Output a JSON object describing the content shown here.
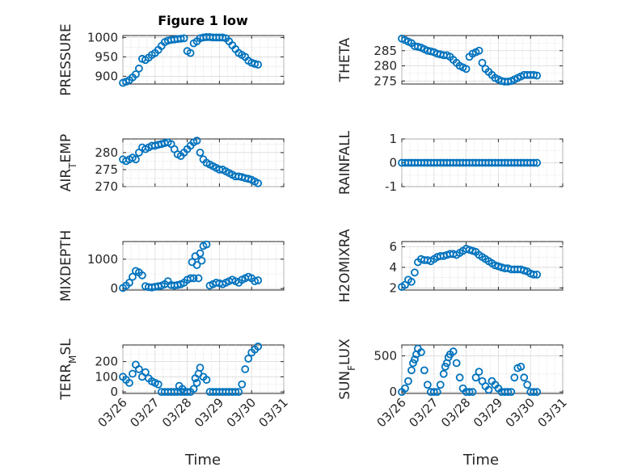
{
  "figure": {
    "title": "Figure 1 low",
    "xlabel": "Time"
  },
  "chart_data": [
    {
      "type": "scatter",
      "ylabel": "PRESSURE",
      "yticks": [
        "900",
        "950",
        "1000"
      ],
      "ylim": [
        880,
        1005
      ],
      "xlim": [
        0,
        5
      ],
      "xtick_labels": [
        "",
        "",
        "",
        "",
        "",
        ""
      ],
      "marker_color": "#0072BD",
      "series": [
        {
          "x": [
            0.0,
            0.1,
            0.2,
            0.3,
            0.4,
            0.5,
            0.6,
            0.7,
            0.8,
            0.9,
            1.0,
            1.1,
            1.2,
            1.3,
            1.4,
            1.5,
            1.6,
            1.7,
            1.8,
            1.9,
            2.0,
            2.1,
            2.2,
            2.3,
            2.4,
            2.5,
            2.6,
            2.7,
            2.8,
            2.9,
            3.0,
            3.1,
            3.2,
            3.3,
            3.4,
            3.5,
            3.6,
            3.7,
            3.8,
            3.9,
            4.0,
            4.1,
            4.2
          ],
          "y": [
            883,
            886,
            890,
            897,
            905,
            920,
            945,
            942,
            948,
            955,
            960,
            968,
            978,
            988,
            992,
            994,
            995,
            996,
            997,
            998,
            965,
            960,
            985,
            990,
            998,
            1000,
            1001,
            1001,
            1000,
            1000,
            1000,
            1000,
            998,
            990,
            980,
            970,
            960,
            955,
            950,
            940,
            935,
            932,
            930
          ]
        }
      ]
    },
    {
      "type": "scatter",
      "ylabel": "THETA",
      "yticks": [
        "275",
        "280",
        "285"
      ],
      "ylim": [
        274,
        290
      ],
      "xlim": [
        0,
        5
      ],
      "xtick_labels": [
        "",
        "",
        "",
        "",
        "",
        ""
      ],
      "marker_color": "#0072BD",
      "series": [
        {
          "x": [
            0.0,
            0.1,
            0.2,
            0.3,
            0.4,
            0.5,
            0.6,
            0.7,
            0.8,
            0.9,
            1.0,
            1.1,
            1.2,
            1.3,
            1.4,
            1.5,
            1.6,
            1.7,
            1.8,
            1.9,
            2.0,
            2.1,
            2.2,
            2.3,
            2.4,
            2.5,
            2.6,
            2.7,
            2.8,
            2.9,
            3.0,
            3.1,
            3.2,
            3.3,
            3.4,
            3.5,
            3.6,
            3.7,
            3.8,
            3.9,
            4.0,
            4.1,
            4.2
          ],
          "y": [
            289,
            288.5,
            288,
            287.5,
            286.5,
            286.3,
            286,
            285.5,
            285,
            284.8,
            284.5,
            284,
            283.8,
            283.5,
            283.5,
            283,
            282,
            281,
            280,
            279.5,
            279,
            283,
            284,
            284.5,
            285,
            281,
            279,
            278,
            277,
            276,
            275.5,
            275,
            274.8,
            274.8,
            275,
            275.5,
            276,
            276.5,
            277,
            277,
            277,
            277,
            276.8
          ]
        }
      ]
    },
    {
      "type": "scatter",
      "ylabel_main": "AIR",
      "ylabel_sub": "T",
      "ylabel_rest": "EMP",
      "yticks": [
        "270",
        "275",
        "280"
      ],
      "ylim": [
        270,
        284
      ],
      "xlim": [
        0,
        5
      ],
      "xtick_labels": [
        "",
        "",
        "",
        "",
        "",
        ""
      ],
      "marker_color": "#0072BD",
      "series": [
        {
          "x": [
            0.0,
            0.1,
            0.2,
            0.3,
            0.4,
            0.5,
            0.6,
            0.7,
            0.8,
            0.9,
            1.0,
            1.1,
            1.2,
            1.3,
            1.4,
            1.5,
            1.6,
            1.7,
            1.8,
            1.9,
            2.0,
            2.1,
            2.2,
            2.3,
            2.4,
            2.5,
            2.6,
            2.7,
            2.8,
            2.9,
            3.0,
            3.1,
            3.2,
            3.3,
            3.4,
            3.5,
            3.6,
            3.7,
            3.8,
            3.9,
            4.0,
            4.1,
            4.2
          ],
          "y": [
            278,
            277.5,
            278,
            278.5,
            278,
            280,
            281.5,
            281,
            281.5,
            282,
            282,
            282.3,
            282.5,
            282.8,
            283,
            282.5,
            281,
            279.5,
            279,
            280,
            281,
            282,
            283,
            283.5,
            280,
            278,
            277,
            276.5,
            276,
            275.5,
            275,
            275,
            274.5,
            274,
            273.5,
            273,
            273,
            272.8,
            272.5,
            272.3,
            272,
            271.5,
            271
          ]
        }
      ]
    },
    {
      "type": "scatter",
      "ylabel": "RAINFALL",
      "yticks": [
        "-1",
        "0",
        "1"
      ],
      "ylim": [
        -1,
        1
      ],
      "xlim": [
        0,
        5
      ],
      "xtick_labels": [
        "",
        "",
        "",
        "",
        "",
        ""
      ],
      "marker_color": "#0072BD",
      "series": [
        {
          "x": [
            0.0,
            0.1,
            0.2,
            0.3,
            0.4,
            0.5,
            0.6,
            0.7,
            0.8,
            0.9,
            1.0,
            1.1,
            1.2,
            1.3,
            1.4,
            1.5,
            1.6,
            1.7,
            1.8,
            1.9,
            2.0,
            2.1,
            2.2,
            2.3,
            2.4,
            2.5,
            2.6,
            2.7,
            2.8,
            2.9,
            3.0,
            3.1,
            3.2,
            3.3,
            3.4,
            3.5,
            3.6,
            3.7,
            3.8,
            3.9,
            4.0,
            4.1,
            4.2
          ],
          "y": [
            0,
            0,
            0,
            0,
            0,
            0,
            0,
            0,
            0,
            0,
            0,
            0,
            0,
            0,
            0,
            0,
            0,
            0,
            0,
            0,
            0,
            0,
            0,
            0,
            0,
            0,
            0,
            0,
            0,
            0,
            0,
            0,
            0,
            0,
            0,
            0,
            0,
            0,
            0,
            0,
            0,
            0,
            0
          ]
        }
      ]
    },
    {
      "type": "scatter",
      "ylabel": "MIXDEPTH",
      "yticks": [
        "0",
        "1000"
      ],
      "ylim": [
        -50,
        1600
      ],
      "xlim": [
        0,
        5
      ],
      "xtick_labels": [
        "",
        "",
        "",
        "",
        "",
        ""
      ],
      "marker_color": "#0072BD",
      "series": [
        {
          "x": [
            0.0,
            0.1,
            0.2,
            0.3,
            0.4,
            0.5,
            0.6,
            0.7,
            0.8,
            0.9,
            1.0,
            1.1,
            1.2,
            1.3,
            1.4,
            1.5,
            1.6,
            1.7,
            1.8,
            1.9,
            2.0,
            2.1,
            2.2,
            2.3,
            2.4,
            2.5,
            2.6,
            2.7,
            2.8,
            2.9,
            3.0,
            3.1,
            3.2,
            3.3,
            3.4,
            3.5,
            3.6,
            3.7,
            3.8,
            3.9,
            4.0,
            4.1,
            4.2,
            2.15,
            2.25,
            2.35,
            2.45
          ],
          "y": [
            20,
            100,
            200,
            400,
            600,
            550,
            450,
            80,
            50,
            40,
            60,
            80,
            100,
            150,
            250,
            120,
            100,
            120,
            150,
            200,
            300,
            350,
            350,
            800,
            1200,
            1450,
            1500,
            100,
            150,
            200,
            180,
            150,
            200,
            250,
            300,
            250,
            200,
            300,
            350,
            400,
            350,
            250,
            280,
            900,
            1100,
            350,
            950
          ]
        }
      ]
    },
    {
      "type": "scatter",
      "ylabel": "H2OMIXRA",
      "yticks": [
        "2",
        "4",
        "6"
      ],
      "ylim": [
        1.8,
        6.5
      ],
      "xlim": [
        0,
        5
      ],
      "xtick_labels": [
        "",
        "",
        "",
        "",
        "",
        ""
      ],
      "marker_color": "#0072BD",
      "series": [
        {
          "x": [
            0.0,
            0.1,
            0.2,
            0.3,
            0.4,
            0.5,
            0.6,
            0.7,
            0.8,
            0.9,
            1.0,
            1.1,
            1.2,
            1.3,
            1.4,
            1.5,
            1.6,
            1.7,
            1.8,
            1.9,
            2.0,
            2.1,
            2.2,
            2.3,
            2.4,
            2.5,
            2.6,
            2.7,
            2.8,
            2.9,
            3.0,
            3.1,
            3.2,
            3.3,
            3.4,
            3.5,
            3.6,
            3.7,
            3.8,
            3.9,
            4.0,
            4.1,
            4.2
          ],
          "y": [
            2.1,
            2.3,
            2.8,
            2.6,
            3.5,
            4.5,
            4.8,
            4.7,
            4.7,
            4.6,
            4.8,
            5.0,
            5.1,
            5.1,
            5.2,
            5.3,
            5.3,
            5.2,
            5.4,
            5.6,
            5.8,
            5.7,
            5.6,
            5.5,
            5.2,
            5.0,
            4.8,
            4.6,
            4.4,
            4.2,
            4.1,
            4.0,
            3.9,
            3.9,
            3.8,
            3.8,
            3.8,
            3.8,
            3.7,
            3.6,
            3.4,
            3.3,
            3.3
          ]
        }
      ]
    },
    {
      "type": "scatter",
      "ylabel_main": "TERR",
      "ylabel_sub": "M",
      "ylabel_rest": "SL",
      "yticks": [
        "0",
        "100",
        "200"
      ],
      "ylim": [
        -10,
        310
      ],
      "xlim": [
        0,
        5
      ],
      "xtick_labels": [
        "03/26",
        "03/27",
        "03/28",
        "03/29",
        "03/30",
        "03/31"
      ],
      "marker_color": "#0072BD",
      "series": [
        {
          "x": [
            0.0,
            0.1,
            0.2,
            0.3,
            0.4,
            0.5,
            0.6,
            0.7,
            0.8,
            0.9,
            1.0,
            1.1,
            1.2,
            1.3,
            1.4,
            1.5,
            1.6,
            1.7,
            1.8,
            1.9,
            2.0,
            2.1,
            2.2,
            2.3,
            2.4,
            2.5,
            2.6,
            2.7,
            2.8,
            2.9,
            3.0,
            3.1,
            3.2,
            3.3,
            3.4,
            3.5,
            3.6,
            3.7,
            3.8,
            3.9,
            4.0,
            4.1,
            4.2,
            1.75,
            1.85,
            2.25,
            2.35
          ],
          "y": [
            100,
            80,
            60,
            120,
            180,
            150,
            100,
            130,
            90,
            70,
            60,
            50,
            0,
            0,
            0,
            0,
            0,
            0,
            0,
            0,
            0,
            0,
            20,
            60,
            160,
            100,
            80,
            0,
            0,
            0,
            0,
            0,
            0,
            0,
            0,
            0,
            0,
            50,
            150,
            220,
            260,
            280,
            300,
            40,
            20,
            90,
            120
          ]
        }
      ]
    },
    {
      "type": "scatter",
      "ylabel_main": "SUN",
      "ylabel_sub": "F",
      "ylabel_rest": "LUX",
      "yticks": [
        "0",
        "500"
      ],
      "ylim": [
        -20,
        650
      ],
      "xlim": [
        0,
        5
      ],
      "xtick_labels": [
        "03/26",
        "03/27",
        "03/28",
        "03/29",
        "03/30",
        "03/31"
      ],
      "marker_color": "#0072BD",
      "series": [
        {
          "x": [
            0.0,
            0.1,
            0.2,
            0.3,
            0.4,
            0.5,
            0.6,
            0.7,
            0.8,
            0.9,
            1.0,
            1.1,
            1.2,
            1.3,
            1.4,
            1.5,
            1.6,
            1.7,
            1.8,
            1.9,
            2.0,
            2.1,
            2.2,
            2.3,
            2.4,
            2.5,
            2.6,
            2.7,
            2.8,
            2.9,
            3.0,
            3.1,
            3.2,
            3.3,
            3.4,
            3.5,
            3.6,
            3.7,
            3.8,
            3.9,
            4.0,
            4.1,
            4.2,
            0.35,
            0.45,
            1.35,
            1.45
          ],
          "y": [
            0,
            50,
            150,
            300,
            450,
            600,
            550,
            300,
            100,
            0,
            0,
            0,
            100,
            250,
            400,
            520,
            560,
            400,
            200,
            50,
            0,
            0,
            0,
            200,
            280,
            150,
            80,
            30,
            150,
            100,
            50,
            0,
            0,
            0,
            0,
            200,
            330,
            350,
            200,
            100,
            0,
            0,
            0,
            400,
            520,
            350,
            480
          ]
        }
      ]
    }
  ]
}
